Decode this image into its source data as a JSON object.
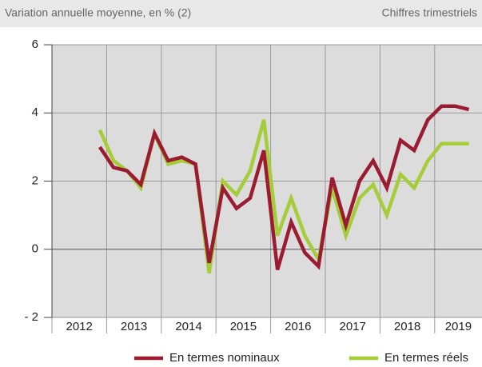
{
  "header": {
    "left": "Variation annuelle moyenne, en % (2)",
    "right": "Chiffres trimestriels"
  },
  "chart_data": {
    "type": "line",
    "categories": [
      "2012",
      null,
      null,
      null,
      "2013",
      null,
      null,
      null,
      "2014",
      null,
      null,
      null,
      "2015",
      null,
      null,
      null,
      "2016",
      null,
      null,
      null,
      "2017",
      null,
      null,
      null,
      "2018",
      null,
      null,
      null,
      "2019",
      null,
      null,
      null
    ],
    "series": [
      {
        "name": "En termes nominaux",
        "color": "#9b1b30",
        "values": [
          null,
          null,
          null,
          3.0,
          2.4,
          2.3,
          1.9,
          3.4,
          2.6,
          2.7,
          2.5,
          -0.4,
          1.8,
          1.2,
          1.5,
          2.9,
          -0.6,
          0.8,
          -0.1,
          -0.5,
          2.1,
          0.7,
          2.0,
          2.6,
          1.8,
          3.2,
          2.9,
          3.8,
          4.2,
          4.2,
          4.1,
          null
        ]
      },
      {
        "name": "En termes réels",
        "color": "#a5cd39",
        "values": [
          null,
          null,
          null,
          3.5,
          2.6,
          2.3,
          1.8,
          3.4,
          2.5,
          2.6,
          2.5,
          -0.7,
          2.0,
          1.6,
          2.3,
          3.8,
          0.4,
          1.5,
          0.4,
          -0.3,
          1.8,
          0.4,
          1.5,
          1.9,
          1.0,
          2.2,
          1.8,
          2.6,
          3.1,
          3.1,
          3.1,
          null
        ]
      }
    ],
    "ylim": [
      -2,
      6
    ],
    "yticks": [
      {
        "value": -2,
        "label": "- 2"
      },
      0,
      2,
      4,
      6
    ],
    "grid": true
  }
}
